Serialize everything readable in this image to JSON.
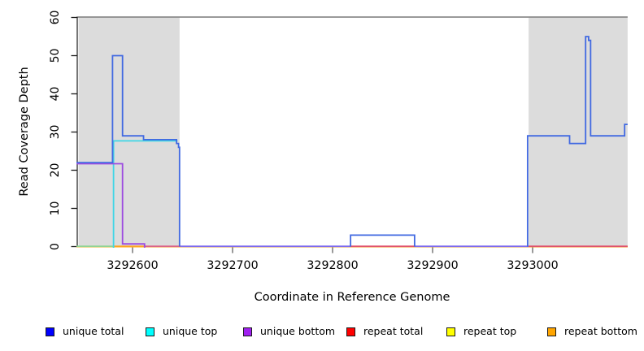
{
  "axes": {
    "x": {
      "title": "Coordinate in Reference Genome",
      "tick_values": [
        3292600,
        3292700,
        3292800,
        3292900,
        3293000
      ],
      "tick_labels": [
        "3292600",
        "3292700",
        "3292800",
        "3292900",
        "3293000"
      ]
    },
    "y": {
      "title": "Read Coverage Depth",
      "tick_values": [
        0,
        10,
        20,
        30,
        40,
        50,
        60
      ],
      "tick_labels": [
        "0",
        "10",
        "20",
        "30",
        "40",
        "50",
        "60"
      ]
    }
  },
  "legend": {
    "items": [
      {
        "label": "unique total",
        "color": "#0000FF"
      },
      {
        "label": "unique top",
        "color": "#00FFFF"
      },
      {
        "label": "unique bottom",
        "color": "#A020F0"
      },
      {
        "label": "repeat total",
        "color": "#FF0000"
      },
      {
        "label": "repeat top",
        "color": "#FFFF00"
      },
      {
        "label": "repeat bottom",
        "color": "#FFA500"
      }
    ]
  },
  "chart_data": {
    "type": "line",
    "title": "",
    "xlabel": "Coordinate in Reference Genome",
    "ylabel": "Read Coverage Depth",
    "xlim": [
      3292544,
      3293095
    ],
    "ylim": [
      0,
      61
    ],
    "grid": false,
    "legend_position": "bottom",
    "repeat_region_fill": "#DCDCDC",
    "repeat_regions": [
      {
        "start": 3292546,
        "end": 3292647
      },
      {
        "start": 3292996,
        "end": 3293095
      }
    ],
    "top_boundary_line": {
      "depth": 60,
      "start": 3292544,
      "end": 3293095,
      "color": "#8B8B8B"
    },
    "series": [
      {
        "name": "repeat total",
        "color": "#FF0000",
        "layer": "under",
        "dy": 0,
        "segments": [
          [
            [
              3292544,
              0
            ],
            [
              3293095,
              0
            ]
          ]
        ]
      },
      {
        "name": "repeat top",
        "color": "#FFFF00",
        "layer": "under",
        "dy": 0,
        "segments": [
          [
            [
              3292544,
              0
            ],
            [
              3293095,
              0
            ]
          ]
        ]
      },
      {
        "name": "repeat bottom",
        "color": "#FFA500",
        "layer": "under",
        "dy": 0,
        "segments": [
          [
            [
              3292544,
              0
            ],
            [
              3293095,
              0
            ]
          ]
        ]
      },
      {
        "name": "unique top",
        "color": "#3FD6E6",
        "layer": "over",
        "dy": 1.5,
        "segments": [
          [
            [
              3292581,
              0
            ],
            [
              3292581,
              28
            ],
            [
              3292645,
              28
            ]
          ]
        ]
      },
      {
        "name": "unique bottom",
        "color": "#9C4BE0",
        "layer": "over",
        "dy": 1.4,
        "segments": [
          [
            [
              3292544,
              22
            ],
            [
              3292590,
              22
            ],
            [
              3292590,
              1
            ],
            [
              3292612,
              1
            ],
            [
              3292612,
              0
            ]
          ]
        ]
      },
      {
        "name": "unique total",
        "color": "#4169E1",
        "layer": "over",
        "dy": 0,
        "segments": [
          [
            [
              3292544,
              22
            ],
            [
              3292580,
              22
            ],
            [
              3292580,
              50
            ],
            [
              3292590,
              50
            ],
            [
              3292590,
              29
            ],
            [
              3292611,
              29
            ],
            [
              3292611,
              28
            ],
            [
              3292644,
              28
            ],
            [
              3292644,
              27
            ],
            [
              3292646,
              27
            ],
            [
              3292646,
              26
            ],
            [
              3292647,
              26
            ],
            [
              3292647,
              0
            ]
          ],
          [
            [
              3292818,
              0
            ],
            [
              3292818,
              3
            ],
            [
              3292882,
              3
            ],
            [
              3292882,
              0
            ]
          ],
          [
            [
              3292995,
              0
            ],
            [
              3292995,
              29
            ],
            [
              3293037,
              29
            ],
            [
              3293037,
              27
            ],
            [
              3293053,
              27
            ],
            [
              3293053,
              55
            ],
            [
              3293056,
              55
            ],
            [
              3293056,
              54
            ],
            [
              3293058,
              54
            ],
            [
              3293058,
              29
            ],
            [
              3293092,
              29
            ],
            [
              3293092,
              32
            ],
            [
              3293095,
              32
            ]
          ]
        ]
      }
    ],
    "baseline_overlay_segments": [
      {
        "start": 3292544,
        "end": 3292581,
        "color": "#8FD492"
      },
      {
        "start": 3292581,
        "end": 3292612,
        "color": "#FFA41E"
      },
      {
        "start": 3292612,
        "end": 3292648,
        "color": "#DB6287"
      },
      {
        "start": 3292648,
        "end": 3292818,
        "color": "#7B68EE"
      },
      {
        "start": 3292818,
        "end": 3292882,
        "color": "#E0506A"
      },
      {
        "start": 3292882,
        "end": 3292996,
        "color": "#7B68EE"
      },
      {
        "start": 3292996,
        "end": 3293095,
        "color": "#E0506A"
      }
    ]
  }
}
